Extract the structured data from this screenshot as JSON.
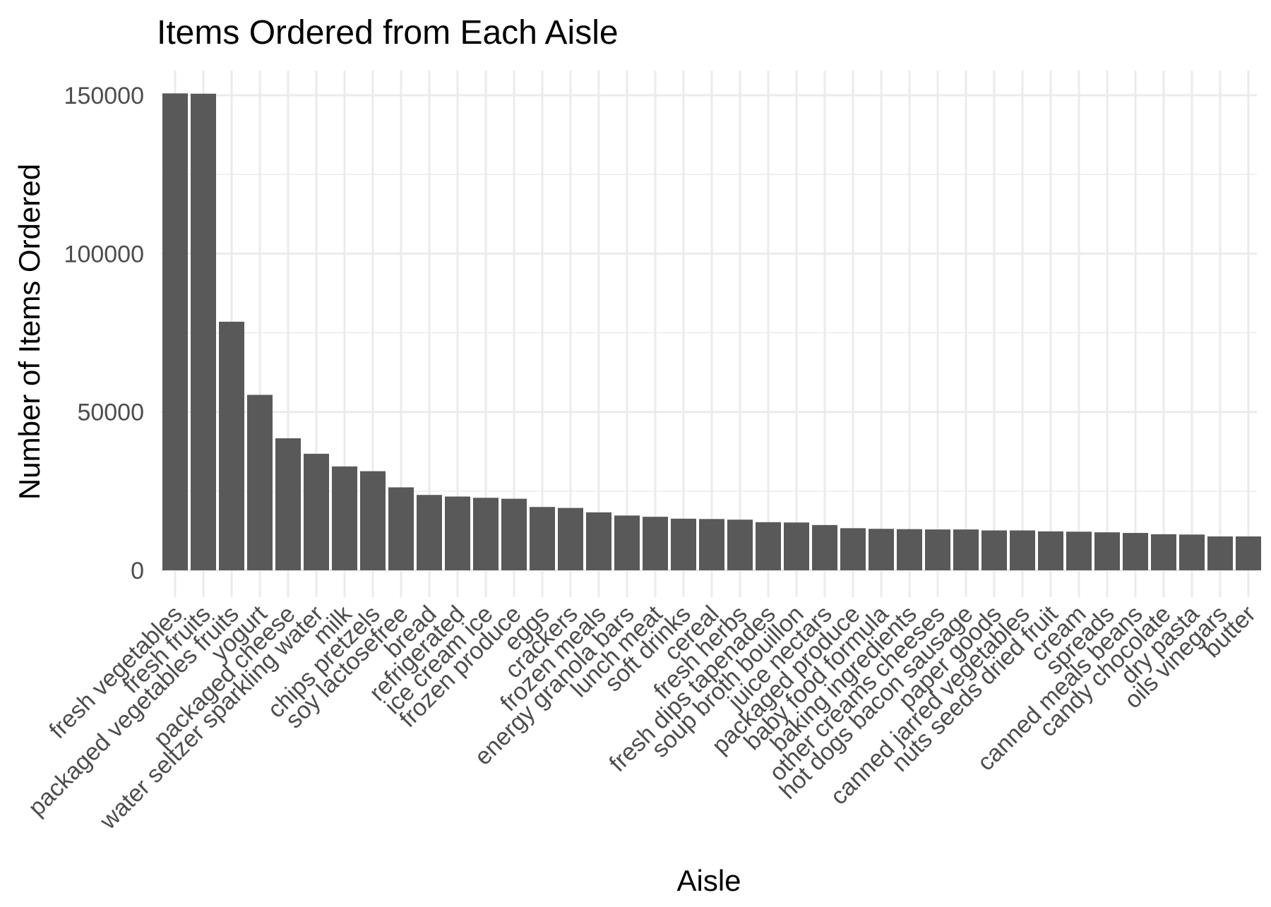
{
  "chart_data": {
    "type": "bar",
    "title": "Items Ordered from Each Aisle",
    "xlabel": "Aisle",
    "ylabel": "Number of Items Ordered",
    "ylim": [
      0,
      157000
    ],
    "yticks": [
      0,
      50000,
      100000,
      150000
    ],
    "ytick_labels": [
      "0",
      "50000",
      "100000",
      "150000"
    ],
    "grid": true,
    "legend": "none",
    "bar_color": "#595959",
    "categories": [
      "fresh vegetables",
      "fresh fruits",
      "packaged vegetables fruits",
      "yogurt",
      "packaged cheese",
      "water seltzer sparkling water",
      "milk",
      "chips pretzels",
      "soy lactosefree",
      "bread",
      "refrigerated",
      "ice cream ice",
      "frozen produce",
      "eggs",
      "crackers",
      "frozen meals",
      "energy granola bars",
      "lunch meat",
      "soft drinks",
      "cereal",
      "fresh herbs",
      "fresh dips tapenades",
      "soup broth bouillon",
      "juice nectars",
      "packaged produce",
      "baby food formula",
      "baking ingredients",
      "other creams cheeses",
      "hot dogs bacon sausage",
      "paper goods",
      "canned jarred vegetables",
      "nuts seeds dried fruit",
      "cream",
      "spreads",
      "canned meals beans",
      "candy chocolate",
      "dry pasta",
      "oils vinegars",
      "butter"
    ],
    "values": [
      150600,
      150500,
      78500,
      55400,
      41700,
      36800,
      32800,
      31300,
      26200,
      23800,
      23300,
      22900,
      22600,
      20000,
      19700,
      18300,
      17300,
      16900,
      16300,
      16200,
      16000,
      15200,
      15100,
      14300,
      13300,
      13100,
      13000,
      12900,
      12900,
      12600,
      12600,
      12300,
      12200,
      12000,
      11800,
      11400,
      11300,
      10700,
      10700
    ]
  }
}
